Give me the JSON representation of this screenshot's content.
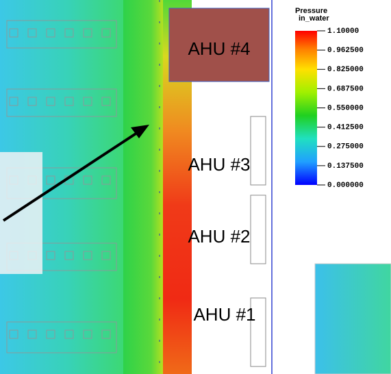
{
  "legend": {
    "title": "Pressure",
    "unit": "in_water",
    "range": [
      0,
      1.1
    ],
    "ticks": [
      {
        "value": 1.1,
        "label": "1.10000"
      },
      {
        "value": 0.9625,
        "label": "0.962500"
      },
      {
        "value": 0.825,
        "label": "0.825000"
      },
      {
        "value": 0.6875,
        "label": "0.687500"
      },
      {
        "value": 0.55,
        "label": "0.550000"
      },
      {
        "value": 0.4125,
        "label": "0.412500"
      },
      {
        "value": 0.275,
        "label": "0.275000"
      },
      {
        "value": 0.1375,
        "label": "0.137500"
      },
      {
        "value": 0,
        "label": "0.000000"
      }
    ]
  },
  "labels": [
    "AHU #4",
    "AHU #3",
    "AHU #2",
    "AHU #1"
  ]
}
